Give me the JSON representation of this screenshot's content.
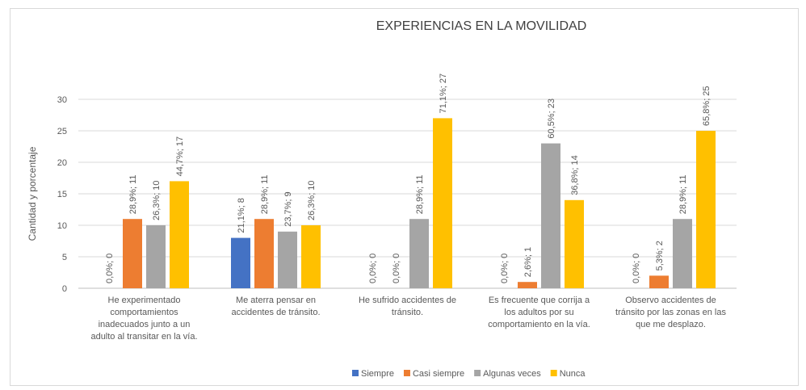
{
  "chart_data": {
    "type": "bar",
    "title": "EXPERIENCIAS EN LA MOVILIDAD",
    "y_label": "Cantidad y porcentaje",
    "categories": [
      "He experimentado comportamientos inadecuados junto a un adulto al transitar en la vía.",
      "Me aterra pensar en accidentes de tránsito.",
      "He sufrido accidentes de tránsito.",
      "Es frecuente que corrija a los adultos por su comportamiento en la vía.",
      "Observo accidentes de tránsito por las zonas en las que me desplazo."
    ],
    "series": [
      {
        "name": "Siempre",
        "color": "#4472c4",
        "values": [
          0,
          8,
          0,
          0,
          0
        ],
        "value_labels": [
          "0,0%; 0",
          "21,1%; 8",
          "0,0%; 0",
          "0,0%; 0",
          "0,0%; 0"
        ]
      },
      {
        "name": "Casi siempre",
        "color": "#ed7d31",
        "values": [
          11,
          11,
          0,
          1,
          2
        ],
        "value_labels": [
          "28,9%; 11",
          "28,9%; 11",
          "0,0%; 0",
          "2,6%; 1",
          "5,3%; 2"
        ]
      },
      {
        "name": "Algunas veces",
        "color": "#a5a5a5",
        "values": [
          10,
          9,
          11,
          23,
          11
        ],
        "value_labels": [
          "26,3%; 10",
          "23,7%; 9",
          "28,9%; 11",
          "60,5%; 23",
          "28,9%; 11"
        ]
      },
      {
        "name": "Nunca",
        "color": "#ffc000",
        "values": [
          17,
          10,
          27,
          14,
          25
        ],
        "value_labels": [
          "44,7%; 17",
          "26,3%; 10",
          "71,1%; 27",
          "36,8%; 14",
          "65,8%; 25"
        ]
      }
    ],
    "ylim": [
      0,
      30
    ],
    "yticks": [
      0,
      5,
      10,
      15,
      20,
      25,
      30
    ],
    "grid": true,
    "legend": "bottom"
  }
}
